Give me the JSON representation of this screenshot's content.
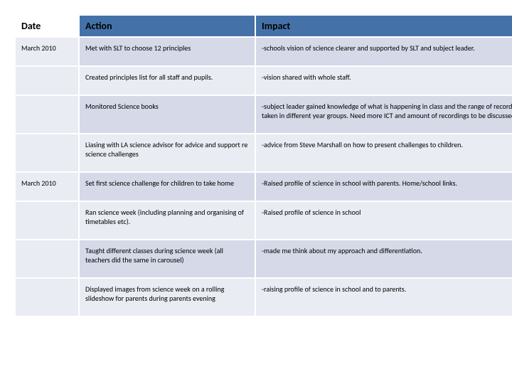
{
  "table": {
    "headers": {
      "date": "Date",
      "action": "Action",
      "impact": "Impact"
    },
    "rows": [
      {
        "date": "March 2010",
        "action": "Met with SLT to choose 12 principles",
        "impact": "-schools vision of science clearer and supported by SLT and subject leader."
      },
      {
        "date": "",
        "action": "Created principles list for all staff and pupils.",
        "impact": "-vision shared with whole staff."
      },
      {
        "date": "",
        "action": "Monitored Science books",
        "impact": "-subject leader gained knowledge of what is happening in class and the range of recordings taken in different year groups. Need more ICT and amount of recordings to be discussed."
      },
      {
        "date": "",
        "action": "Liasing with LA science advisor for advice and support re science challenges",
        "impact": "-advice from Steve Marshall on how to present challenges to children."
      },
      {
        "date": "March 2010",
        "action": "Set first science challenge for children to take home",
        "impact": "-Raised profile of science in school with parents. Home/school links."
      },
      {
        "date": "",
        "action": "Ran science week (including planning and organising of timetables etc).",
        "impact": "-Raised profile of science in school"
      },
      {
        "date": "",
        "action": "Taught different classes during science week (all teachers did the same in carousel)",
        "impact": "-made me think about my approach and differentiation."
      },
      {
        "date": "",
        "action": "Displayed images from science week on a rolling slideshow for parents during parents evening",
        "impact": "-raising profile of science in school and to parents."
      }
    ],
    "colors": {
      "header_accent": "#4472a8",
      "row_odd": "#d5d9e8",
      "row_even": "#e9ecf2",
      "border": "#ffffff",
      "text": "#000000"
    },
    "fonts": {
      "header_size": 14,
      "body_size": 10,
      "family": "Calibri"
    }
  }
}
